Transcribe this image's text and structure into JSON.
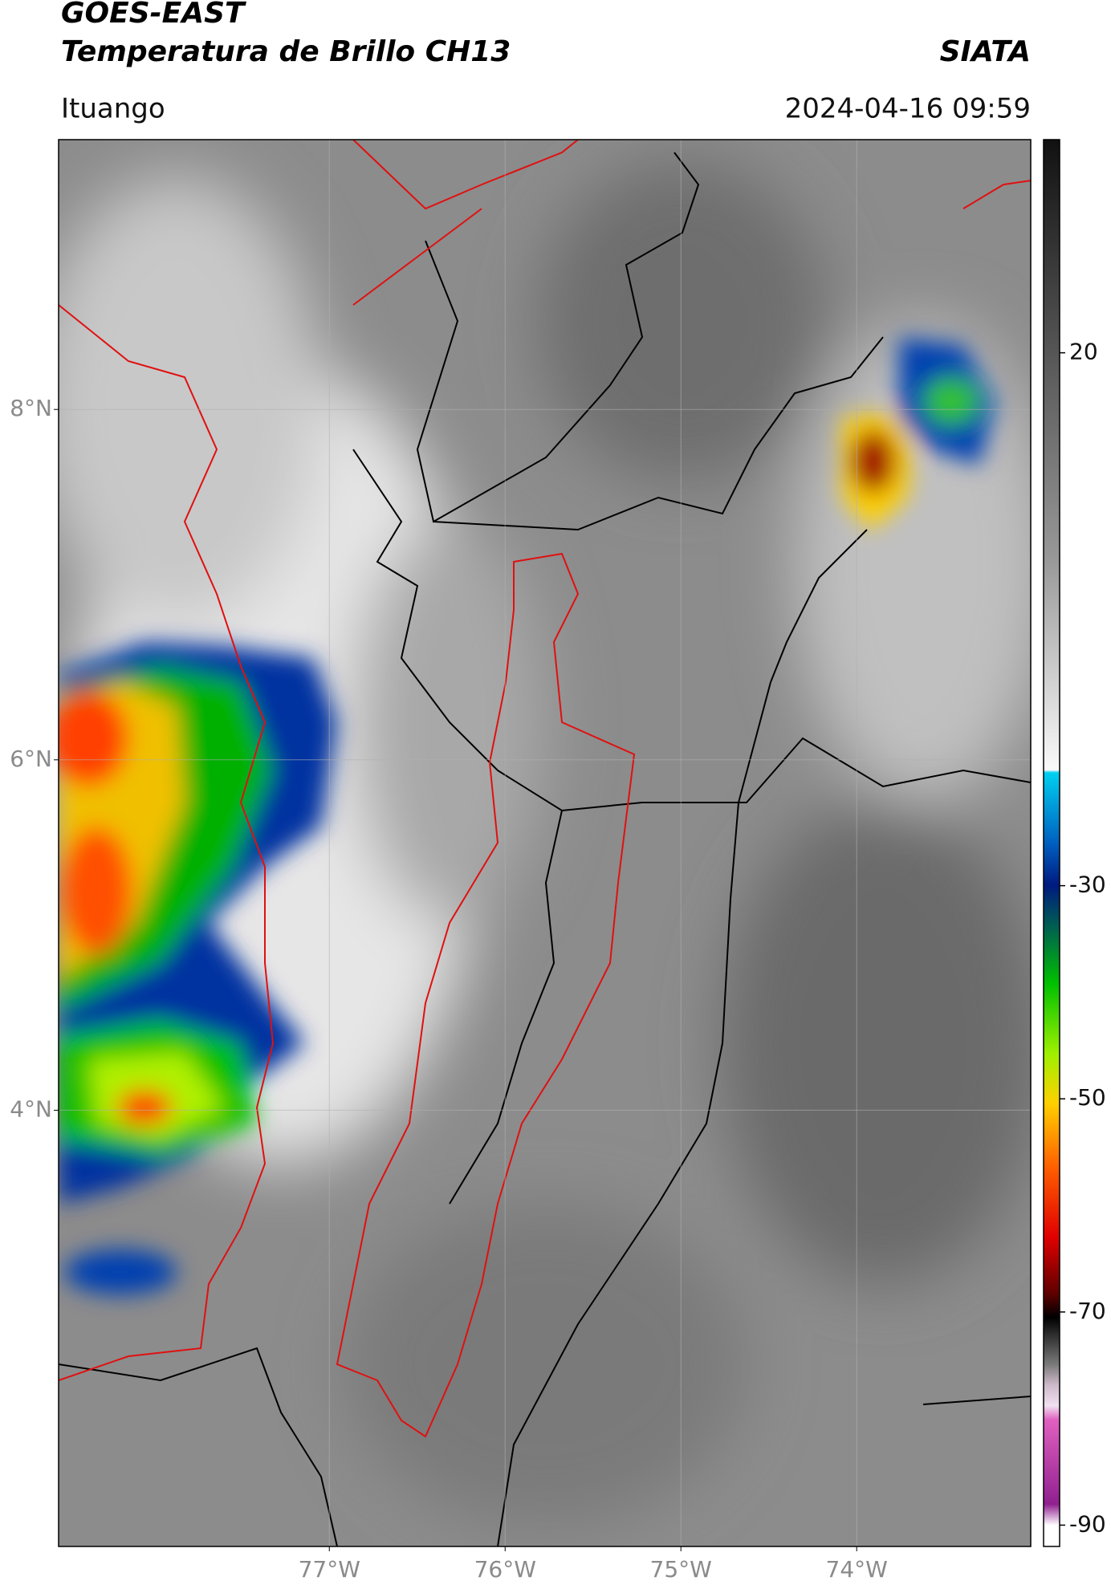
{
  "header": {
    "title": "GOES-EAST",
    "subtitle": "Temperatura de Brillo CH13",
    "credit": "SIATA",
    "location": "Ituango",
    "datetime": "2024-04-16 09:59"
  },
  "map": {
    "latlim": [
      1.51,
      9.54
    ],
    "lonlim": [
      -78.54,
      -73.01
    ],
    "grid": true,
    "lat_ticks": [
      {
        "value": 8,
        "label": "8°N"
      },
      {
        "value": 6,
        "label": "6°N"
      },
      {
        "value": 4,
        "label": "4°N"
      }
    ],
    "lon_ticks": [
      {
        "value": -77,
        "label": "77°W"
      },
      {
        "value": -76,
        "label": "76°W"
      },
      {
        "value": -75,
        "label": "75°W"
      },
      {
        "value": -74,
        "label": "74°W"
      }
    ]
  },
  "colorbar": {
    "lim": [
      -92,
      40
    ],
    "ticks": [
      20,
      -30,
      -50,
      -70,
      -90
    ]
  }
}
